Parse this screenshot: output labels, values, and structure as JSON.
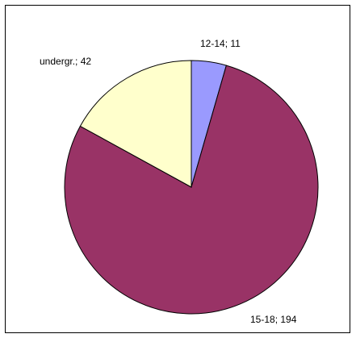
{
  "chart_data": {
    "type": "pie",
    "title": "",
    "slices": [
      {
        "label": "12-14",
        "value": 11,
        "data_label": "12-14; 11",
        "color": "#9a9afe"
      },
      {
        "label": "15-18",
        "value": 194,
        "data_label": "15-18;  194",
        "color": "#993366"
      },
      {
        "label": "undergr.",
        "value": 42,
        "data_label": "undergr.; 42",
        "color": "#ffffcc"
      }
    ],
    "start_angle": "12 o'clock",
    "direction": "clockwise",
    "legend": "none"
  }
}
